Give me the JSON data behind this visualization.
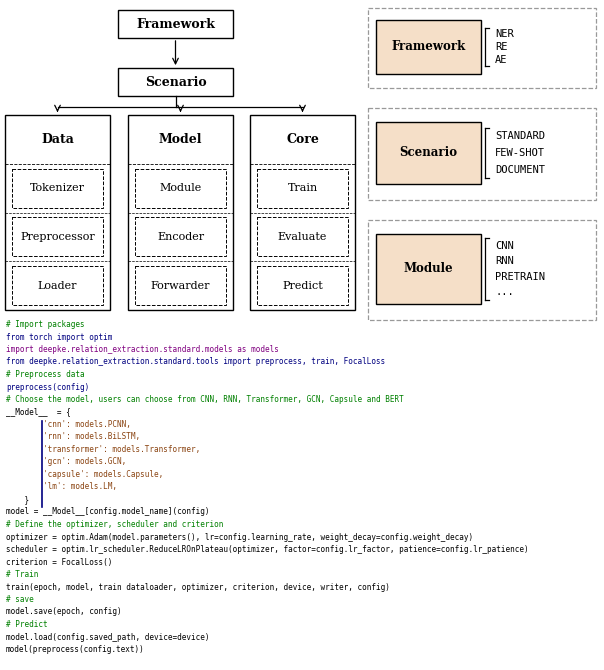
{
  "bg_color": "#ffffff",
  "panel_fill": "#f5dfc8",
  "right_panels": [
    {
      "inner_label": "Framework",
      "items": [
        "NER",
        "RE",
        "AE"
      ]
    },
    {
      "inner_label": "Scenario",
      "items": [
        "STANDARD",
        "FEW-SHOT",
        "DOCUMENT"
      ]
    },
    {
      "inner_label": "Module",
      "items": [
        "CNN",
        "RNN",
        "PRETRAIN",
        "..."
      ]
    }
  ],
  "code_lines": [
    {
      "text": "# Import packages",
      "color": "#008000"
    },
    {
      "text": "from torch import optim",
      "color": "#000080"
    },
    {
      "text": "import deepke.relation_extraction.standard.models as models",
      "color": "#800080"
    },
    {
      "text": "from deepke.relation_extraction.standard.tools import preprocess, train, FocalLoss",
      "color": "#000080"
    },
    {
      "text": "# Preprocess data",
      "color": "#008000"
    },
    {
      "text": "preprocess(config)",
      "color": "#000080"
    },
    {
      "text": "# Choose the model, users can choose from CNN, RNN, Transformer, GCN, Capsule and BERT",
      "color": "#008000"
    },
    {
      "text": "__Model__  = {",
      "color": "#000000"
    },
    {
      "text": "        'cnn': models.PCNN,",
      "color": "#8B4513"
    },
    {
      "text": "        'rnn': models.BiLSTM,",
      "color": "#8B4513"
    },
    {
      "text": "        'transformer': models.Transformer,",
      "color": "#8B4513"
    },
    {
      "text": "        'gcn': models.GCN,",
      "color": "#8B4513"
    },
    {
      "text": "        'capsule': models.Capsule,",
      "color": "#8B4513"
    },
    {
      "text": "        'lm': models.LM,",
      "color": "#8B4513"
    },
    {
      "text": "    }",
      "color": "#000000"
    },
    {
      "text": "model = __Model__[config.model_name](config)",
      "color": "#000000"
    },
    {
      "text": "# Define the optimizer, scheduler and criterion",
      "color": "#008000"
    },
    {
      "text": "optimizer = optim.Adam(model.parameters(), lr=config.learning_rate, weight_decay=config.weight_decay)",
      "color": "#000000"
    },
    {
      "text": "scheduler = optim.lr_scheduler.ReduceLROnPlateau(optimizer, factor=config.lr_factor, patience=config.lr_patience)",
      "color": "#000000"
    },
    {
      "text": "criterion = FocalLoss()",
      "color": "#000000"
    },
    {
      "text": "# Train",
      "color": "#008000"
    },
    {
      "text": "train(epoch, model, train dataloader, optimizer, criterion, device, writer, config)",
      "color": "#000000"
    },
    {
      "text": "# save",
      "color": "#008000"
    },
    {
      "text": "model.save(epoch, config)",
      "color": "#000000"
    },
    {
      "text": "# Predict",
      "color": "#008000"
    },
    {
      "text": "model.load(config.saved_path, device=device)",
      "color": "#000000"
    },
    {
      "text": "model(preprocess(config.text))",
      "color": "#000000"
    }
  ]
}
